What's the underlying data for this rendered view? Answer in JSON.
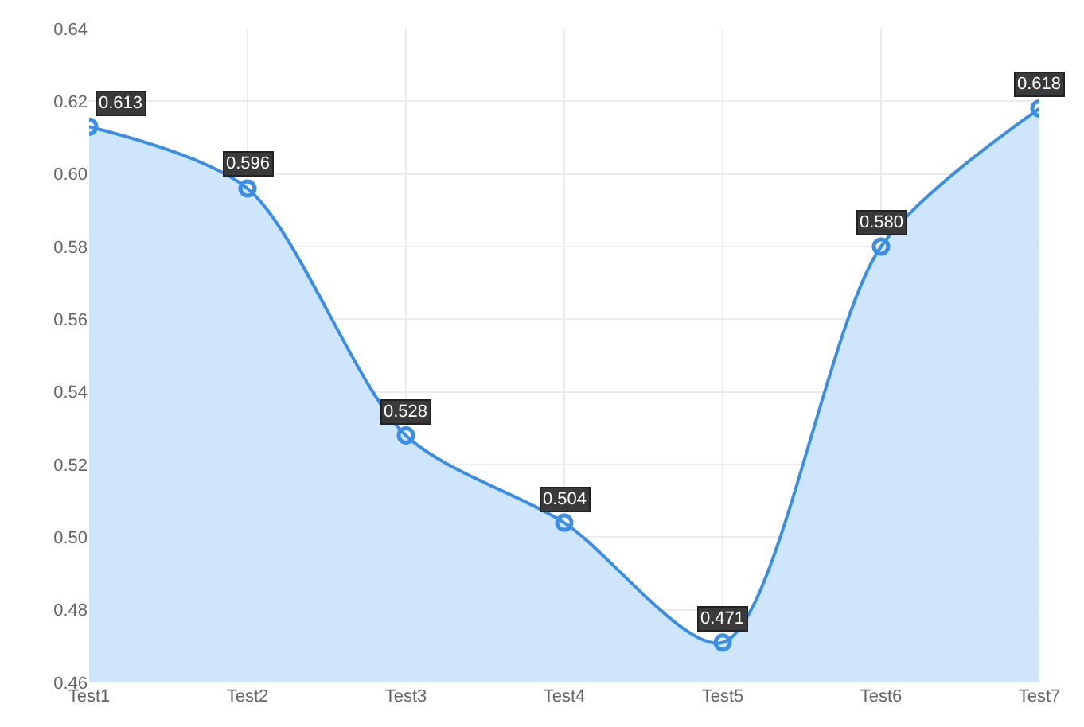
{
  "chart_data": {
    "type": "area",
    "categories": [
      "Test1",
      "Test2",
      "Test3",
      "Test4",
      "Test5",
      "Test6",
      "Test7"
    ],
    "series": [
      {
        "color": "#3a8ee6",
        "values": [
          0.613,
          0.596,
          0.528,
          0.504,
          0.471,
          0.58,
          0.618
        ],
        "value_labels": [
          "0.613",
          "0.596",
          "0.528",
          "0.504",
          "0.471",
          "0.580",
          "0.618"
        ]
      }
    ],
    "ylim": [
      0.46,
      0.64
    ],
    "yticks": [
      0.46,
      0.48,
      {
        "value": 0.5,
        "label": "0.50"
      },
      0.52,
      0.54,
      0.56,
      0.58,
      {
        "value": 0.6,
        "label": "0.60"
      },
      0.62,
      0.64
    ],
    "grid": true,
    "marker": "circle",
    "line_style": "solid"
  }
}
